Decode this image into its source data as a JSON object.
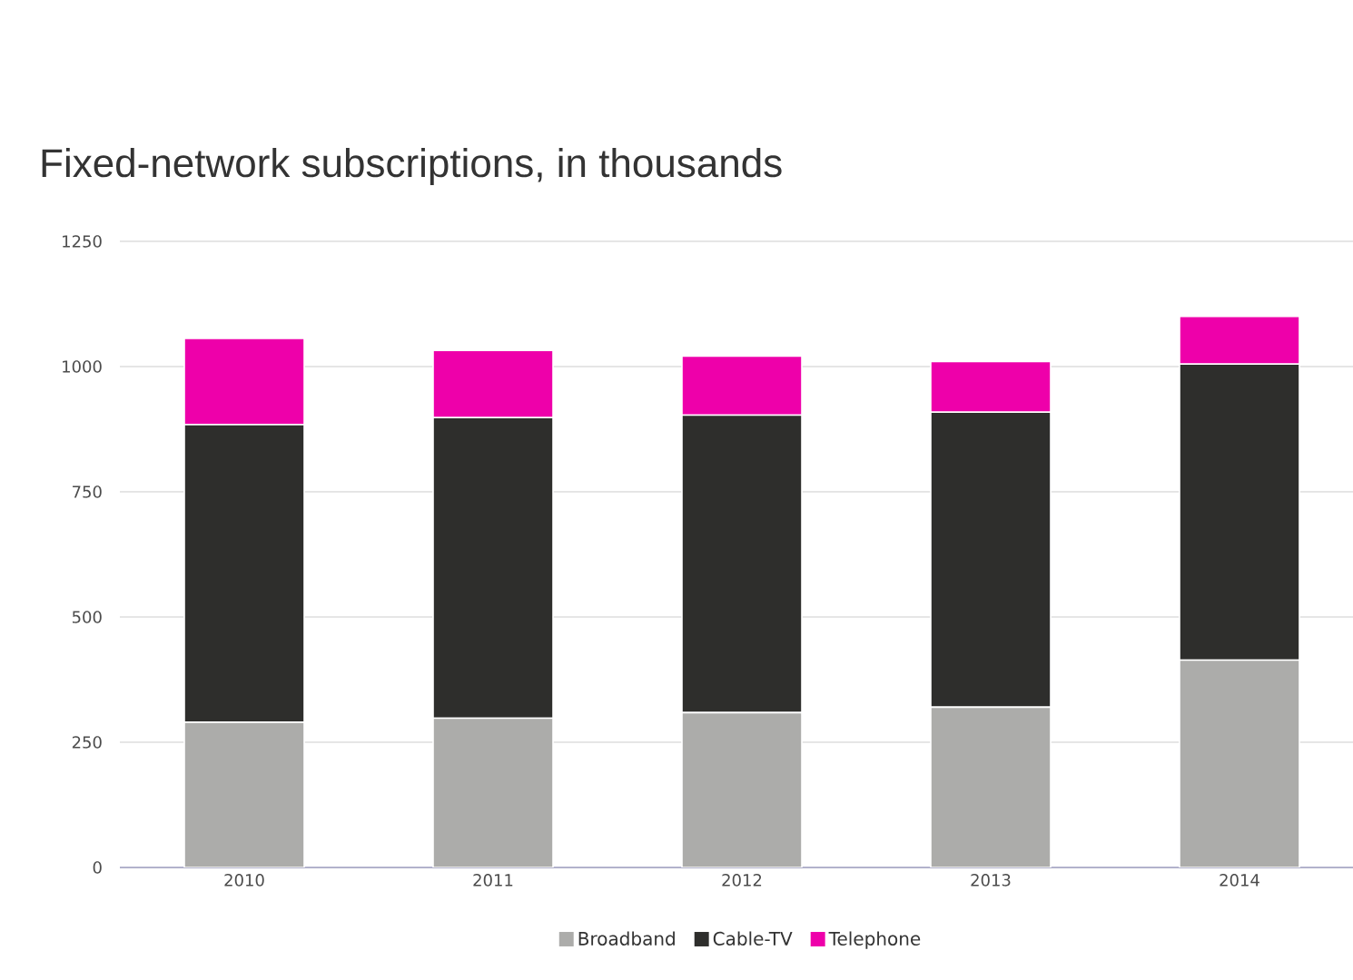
{
  "chart_data": {
    "type": "bar",
    "stacked": true,
    "title": "Fixed-network subscriptions, in thousands",
    "categories": [
      "2010",
      "2011",
      "2012",
      "2013",
      "2014"
    ],
    "series": [
      {
        "name": "Broadband",
        "color": "#acacaa",
        "values": [
          290,
          298,
          309,
          320,
          414
        ]
      },
      {
        "name": "Cable-TV",
        "color": "#2e2e2c",
        "values": [
          594,
          600,
          594,
          589,
          591
        ]
      },
      {
        "name": "Telephone",
        "color": "#ee00aa",
        "values": [
          172,
          134,
          118,
          101,
          95
        ]
      }
    ],
    "ylim": [
      0,
      1250
    ],
    "yticks": [
      0,
      250,
      500,
      750,
      1000,
      1250
    ],
    "grid": "y",
    "legend": "bottom"
  }
}
